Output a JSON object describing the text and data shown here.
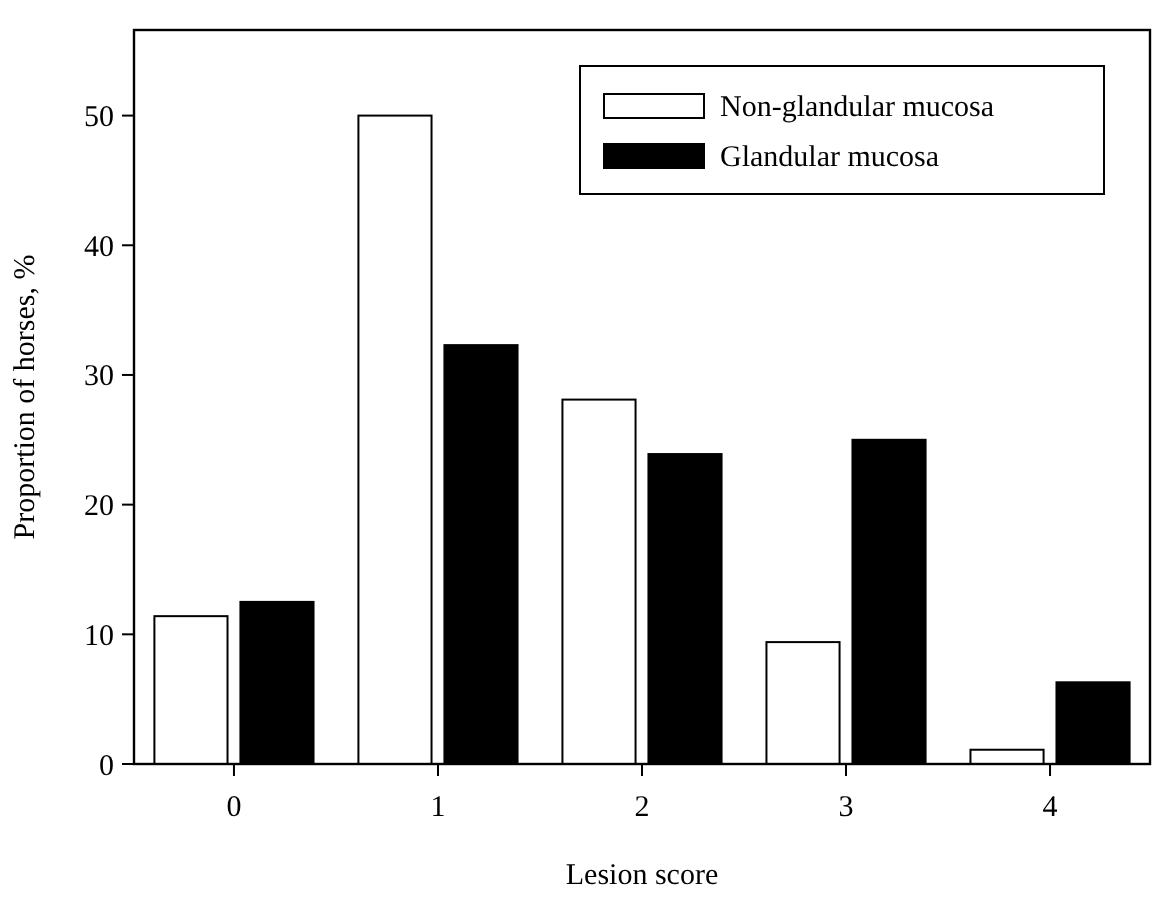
{
  "chart_data": {
    "type": "bar",
    "xlabel": "Lesion score",
    "ylabel": "Proportion of horses, %",
    "categories": [
      "0",
      "1",
      "2",
      "3",
      "4"
    ],
    "series": [
      {
        "name": "Non-glandular mucosa",
        "color": "#ffffff",
        "values": [
          11.4,
          50,
          28.1,
          9.4,
          1.1
        ]
      },
      {
        "name": "Glandular mucosa",
        "color": "#000000",
        "values": [
          12.5,
          32.3,
          23.9,
          25,
          6.3
        ]
      }
    ],
    "ylim": [
      0,
      56.6
    ],
    "yticks": [
      0,
      10,
      20,
      30,
      40,
      50
    ],
    "legend": "top right",
    "grid": false
  }
}
